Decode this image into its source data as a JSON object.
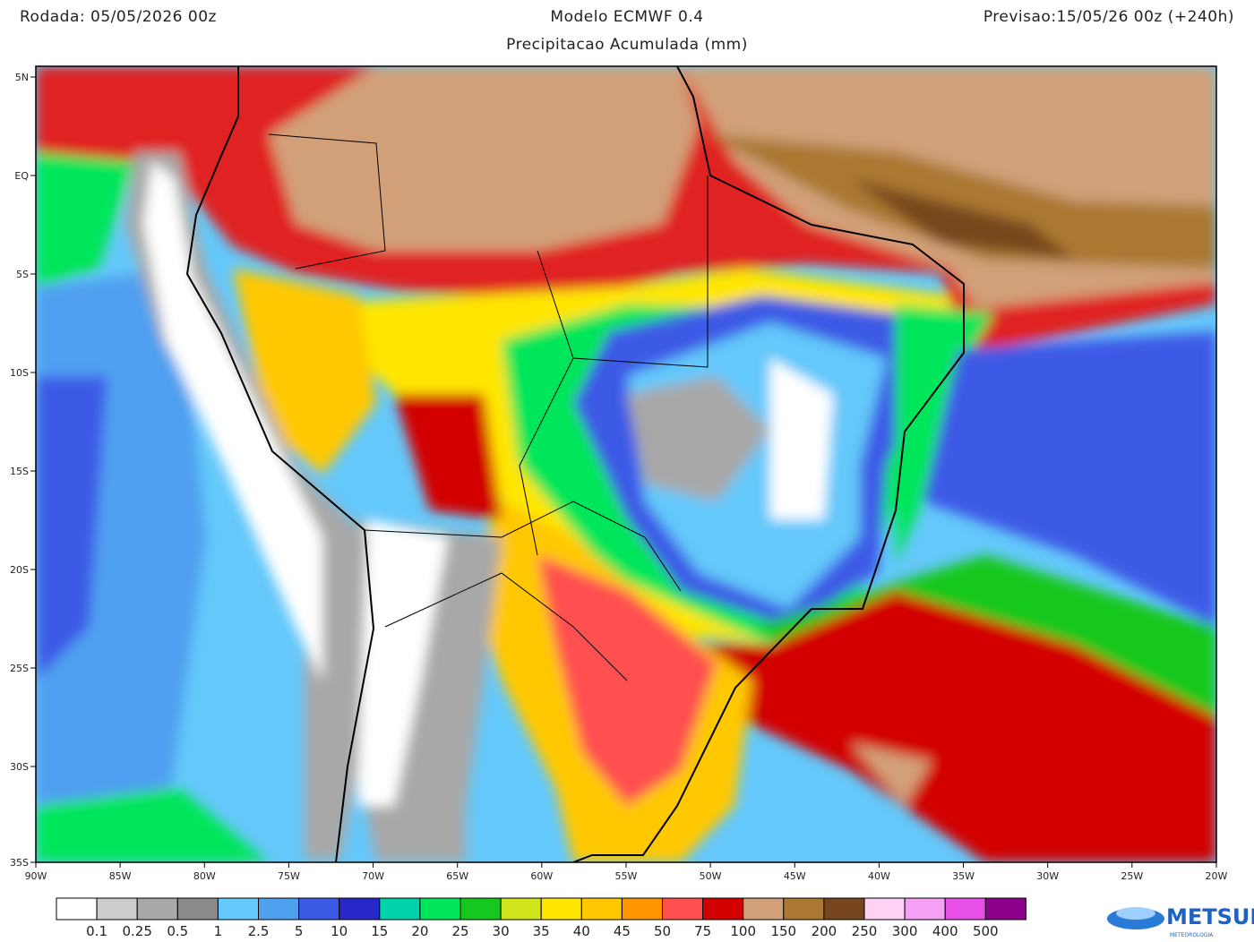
{
  "header": {
    "run": "Rodada: 05/05/2026 00z",
    "model": "Modelo ECMWF 0.4",
    "forecast": "Previsao:15/05/26 00z (+240h)",
    "subtitle": "Precipitacao Acumulada (mm)"
  },
  "map": {
    "lat_labels": [
      "5N",
      "EQ",
      "5S",
      "10S",
      "15S",
      "20S",
      "25S",
      "30S",
      "35S"
    ],
    "lon_labels": [
      "90W",
      "85W",
      "80W",
      "75W",
      "70W",
      "65W",
      "60W",
      "55W",
      "50W",
      "45W",
      "40W",
      "35W",
      "30W",
      "25W",
      "20W"
    ]
  },
  "legend": {
    "colors": [
      "#ffffff",
      "#cccccc",
      "#a8a8a8",
      "#8a8a8a",
      "#64c8fa",
      "#50a0f0",
      "#3c5ae6",
      "#2828c8",
      "#00d2aa",
      "#00e65a",
      "#14c81e",
      "#d2e61e",
      "#ffe600",
      "#ffc800",
      "#ff9600",
      "#ff5050",
      "#d20000",
      "#d2a078",
      "#aa7832",
      "#78461e",
      "#ffd2f5",
      "#f5a0f5",
      "#e650e6",
      "#8c008c"
    ],
    "labels": [
      "0.1",
      "0.25",
      "0.5",
      "1",
      "2.5",
      "5",
      "10",
      "15",
      "20",
      "25",
      "30",
      "35",
      "40",
      "45",
      "50",
      "75",
      "100",
      "150",
      "200",
      "250",
      "300",
      "400",
      "500"
    ]
  },
  "logo": {
    "name": "METSUL",
    "tagline": "METEOROLOGIA"
  }
}
